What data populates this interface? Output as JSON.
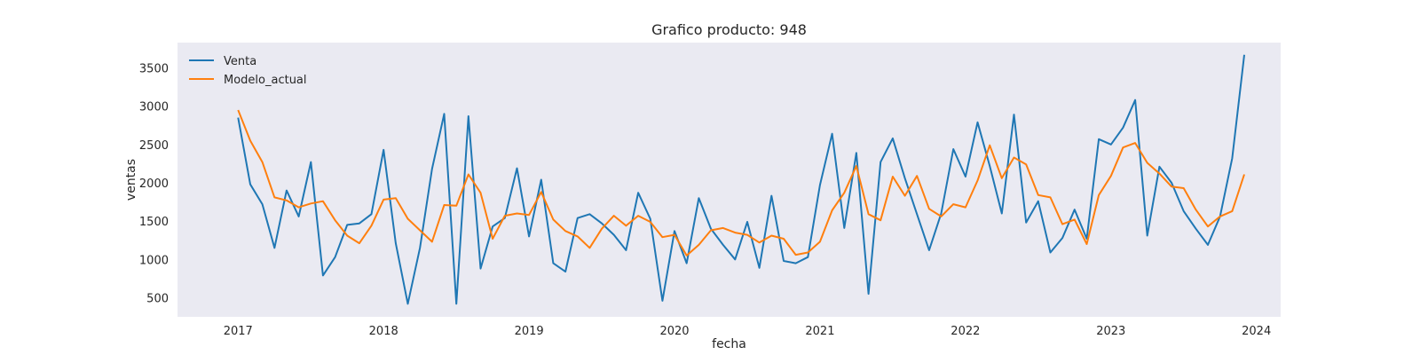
{
  "chart_data": {
    "type": "line",
    "title": "Grafico producto: 948",
    "xlabel": "fecha",
    "ylabel": "ventas",
    "x_ticks": [
      "2017",
      "2018",
      "2019",
      "2020",
      "2021",
      "2022",
      "2023",
      "2024"
    ],
    "y_ticks": [
      500,
      1000,
      1500,
      2000,
      2500,
      3000,
      3500
    ],
    "xlim": [
      "2016-08-01",
      "2024-03-01"
    ],
    "ylim": [
      250,
      3830
    ],
    "grid": false,
    "background": "#eaeaf2",
    "legend_position": "top-left",
    "x": [
      "2017-01",
      "2017-02",
      "2017-03",
      "2017-04",
      "2017-05",
      "2017-06",
      "2017-07",
      "2017-08",
      "2017-09",
      "2017-10",
      "2017-11",
      "2017-12",
      "2018-01",
      "2018-02",
      "2018-03",
      "2018-04",
      "2018-05",
      "2018-06",
      "2018-07",
      "2018-08",
      "2018-09",
      "2018-10",
      "2018-11",
      "2018-12",
      "2019-01",
      "2019-02",
      "2019-03",
      "2019-04",
      "2019-05",
      "2019-06",
      "2019-07",
      "2019-08",
      "2019-09",
      "2019-10",
      "2019-11",
      "2019-12",
      "2020-01",
      "2020-02",
      "2020-03",
      "2020-04",
      "2020-05",
      "2020-06",
      "2020-07",
      "2020-08",
      "2020-09",
      "2020-10",
      "2020-11",
      "2020-12",
      "2021-01",
      "2021-02",
      "2021-03",
      "2021-04",
      "2021-05",
      "2021-06",
      "2021-07",
      "2021-08",
      "2021-09",
      "2021-10",
      "2021-11",
      "2021-12",
      "2022-01",
      "2022-02",
      "2022-03",
      "2022-04",
      "2022-05",
      "2022-06",
      "2022-07",
      "2022-08",
      "2022-09",
      "2022-10",
      "2022-11",
      "2022-12",
      "2023-01",
      "2023-02",
      "2023-03",
      "2023-04",
      "2023-05",
      "2023-06",
      "2023-07",
      "2023-08",
      "2023-09",
      "2023-10",
      "2023-11",
      "2023-12"
    ],
    "series": [
      {
        "name": "Venta",
        "color": "#1f77b4",
        "values": [
          2850,
          1980,
          1720,
          1150,
          1900,
          1560,
          2270,
          790,
          1030,
          1450,
          1470,
          1590,
          2430,
          1210,
          420,
          1150,
          2180,
          2900,
          420,
          2870,
          880,
          1430,
          1540,
          2190,
          1300,
          2040,
          950,
          840,
          1540,
          1590,
          1470,
          1320,
          1120,
          1870,
          1530,
          460,
          1370,
          950,
          1800,
          1400,
          1190,
          1000,
          1490,
          890,
          1830,
          980,
          950,
          1030,
          1970,
          2640,
          1410,
          2390,
          550,
          2270,
          2580,
          2060,
          1590,
          1120,
          1600,
          2440,
          2080,
          2790,
          2220,
          1600,
          2890,
          1480,
          1760,
          1090,
          1280,
          1650,
          1270,
          2570,
          2500,
          2720,
          3080,
          1310,
          2210,
          2000,
          1630,
          1400,
          1190,
          1560,
          2320,
          3670
        ]
      },
      {
        "name": "Modelo_actual",
        "color": "#ff7f0e",
        "values": [
          2950,
          2550,
          2270,
          1810,
          1770,
          1680,
          1730,
          1760,
          1510,
          1310,
          1210,
          1440,
          1780,
          1800,
          1530,
          1380,
          1230,
          1710,
          1700,
          2110,
          1870,
          1270,
          1570,
          1600,
          1580,
          1880,
          1520,
          1370,
          1300,
          1150,
          1400,
          1570,
          1440,
          1570,
          1490,
          1290,
          1320,
          1050,
          1190,
          1380,
          1410,
          1350,
          1320,
          1220,
          1310,
          1270,
          1060,
          1090,
          1230,
          1640,
          1870,
          2220,
          1590,
          1510,
          2080,
          1830,
          2090,
          1660,
          1560,
          1720,
          1680,
          2030,
          2490,
          2060,
          2330,
          2240,
          1840,
          1810,
          1460,
          1520,
          1200,
          1840,
          2090,
          2460,
          2520,
          2260,
          2120,
          1950,
          1930,
          1650,
          1430,
          1560,
          1630,
          2110
        ]
      }
    ]
  }
}
